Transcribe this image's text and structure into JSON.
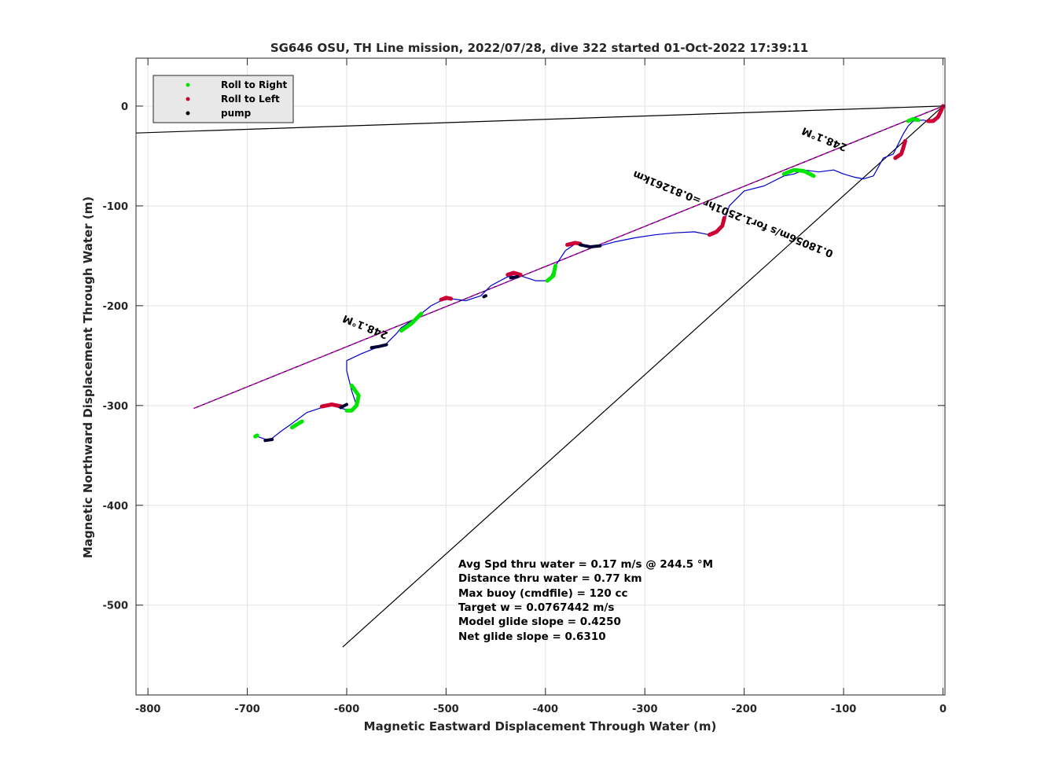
{
  "chart_data": {
    "type": "line",
    "title": "SG646 OSU, TH Line mission, 2022/07/28, dive 322 started 01-Oct-2022 17:39:11",
    "xlabel": "Magnetic Eastward Displacement Through Water (m)",
    "ylabel": "Magnetic Northward Displacement Through Water (m)",
    "xlim": [
      -812,
      2
    ],
    "ylim": [
      -590,
      48
    ],
    "xticks": [
      -800,
      -700,
      -600,
      -500,
      -400,
      -300,
      -200,
      -100,
      0
    ],
    "yticks": [
      -500,
      -400,
      -300,
      -200,
      -100,
      0
    ],
    "grid": true,
    "legend": {
      "placement": "top-left",
      "entries": [
        {
          "label": "Roll to Right",
          "color": "#00e600"
        },
        {
          "label": "Roll to Left",
          "color": "#cc0033"
        },
        {
          "label": "pump",
          "color": "#000000"
        }
      ]
    },
    "reference_lines": [
      {
        "name": "",
        "color": "#000000",
        "x": [
          0,
          -812
        ],
        "y": [
          0,
          -27
        ]
      },
      {
        "name": "",
        "color": "#000000",
        "x": [
          0,
          -754
        ],
        "y": [
          0,
          -303
        ]
      },
      {
        "name": "",
        "color": "#cc00cc",
        "x": [
          0,
          -754
        ],
        "y": [
          0,
          -303
        ]
      },
      {
        "name": "",
        "color": "#000000",
        "x": [
          0,
          -604
        ],
        "y": [
          0,
          -542
        ]
      }
    ],
    "series": [
      {
        "name": "",
        "color": "#0000cc",
        "x": [
          0,
          -5,
          -10,
          -20,
          -30,
          -35,
          -40,
          -45,
          -50,
          -60,
          -70,
          -80,
          -90,
          -100,
          -110,
          -125,
          -140,
          -150,
          -160,
          -180,
          -200,
          -215,
          -220,
          -225,
          -235,
          -250,
          -270,
          -290,
          -310,
          -330,
          -345,
          -355,
          -370,
          -380,
          -390,
          -395,
          -400,
          -410,
          -425,
          -430,
          -440,
          -455,
          -465,
          -480,
          -495,
          -505,
          -515,
          -530,
          -545,
          -550,
          -560,
          -570,
          -585,
          -600,
          -600,
          -595,
          -590,
          -595,
          -605,
          -615,
          -625,
          -640,
          -655,
          -665,
          -678,
          -690
        ],
        "y": [
          0,
          -10,
          -16,
          -14,
          -15,
          -20,
          -28,
          -38,
          -48,
          -52,
          -70,
          -73,
          -71,
          -68,
          -64,
          -66,
          -64,
          -68,
          -70,
          -80,
          -85,
          -100,
          -115,
          -125,
          -129,
          -126,
          -127,
          -129,
          -132,
          -136,
          -140,
          -141,
          -138,
          -145,
          -160,
          -172,
          -175,
          -175,
          -170,
          -168,
          -172,
          -180,
          -190,
          -195,
          -193,
          -195,
          -200,
          -212,
          -222,
          -228,
          -238,
          -242,
          -248,
          -255,
          -265,
          -285,
          -300,
          -305,
          -303,
          -300,
          -302,
          -307,
          -318,
          -325,
          -335,
          -331
        ]
      }
    ],
    "roll_right_segments": [
      {
        "x": [
          -35,
          -30,
          -25
        ],
        "y": [
          -15,
          -13,
          -14
        ]
      },
      {
        "x": [
          -160,
          -150,
          -140,
          -130
        ],
        "y": [
          -68,
          -64,
          -65,
          -70
        ]
      },
      {
        "x": [
          -390,
          -392,
          -398
        ],
        "y": [
          -160,
          -170,
          -175
        ]
      },
      {
        "x": [
          -525,
          -535,
          -545
        ],
        "y": [
          -208,
          -218,
          -225
        ]
      },
      {
        "x": [
          -595,
          -588,
          -590,
          -595,
          -600
        ],
        "y": [
          -280,
          -290,
          -300,
          -305,
          -305
        ]
      },
      {
        "x": [
          -645,
          -655
        ],
        "y": [
          -316,
          -322
        ]
      },
      {
        "x": [
          -690,
          -692
        ],
        "y": [
          -330,
          -331
        ]
      }
    ],
    "roll_left_segments": [
      {
        "x": [
          0,
          -2,
          -5,
          -10,
          -15
        ],
        "y": [
          0,
          -5,
          -11,
          -15,
          -15
        ]
      },
      {
        "x": [
          -38,
          -40,
          -42,
          -48
        ],
        "y": [
          -35,
          -42,
          -48,
          -52
        ]
      },
      {
        "x": [
          -220,
          -222,
          -228,
          -235
        ],
        "y": [
          -112,
          -120,
          -126,
          -129
        ]
      },
      {
        "x": [
          -365,
          -370,
          -378
        ],
        "y": [
          -138,
          -137,
          -139
        ]
      },
      {
        "x": [
          -425,
          -432,
          -438
        ],
        "y": [
          -169,
          -167,
          -169
        ]
      },
      {
        "x": [
          -495,
          -500,
          -505
        ],
        "y": [
          -193,
          -192,
          -194
        ]
      },
      {
        "x": [
          -605,
          -615,
          -625
        ],
        "y": [
          -301,
          -299,
          -301
        ]
      }
    ],
    "pump_segments": [
      {
        "x": [
          -345,
          -355,
          -365
        ],
        "y": [
          -140,
          -141,
          -139
        ]
      },
      {
        "x": [
          -428,
          -435
        ],
        "y": [
          -171,
          -172
        ]
      },
      {
        "x": [
          -460,
          -462
        ],
        "y": [
          -190,
          -191
        ]
      },
      {
        "x": [
          -560,
          -568,
          -575
        ],
        "y": [
          -239,
          -241,
          -242
        ]
      },
      {
        "x": [
          -600,
          -606
        ],
        "y": [
          -299,
          -302
        ]
      },
      {
        "x": [
          -675,
          -682
        ],
        "y": [
          -334,
          -335
        ]
      }
    ],
    "slope_labels": [
      {
        "text": "248.1°M",
        "x": -118,
        "y": -30,
        "angle": 202
      },
      {
        "text": "0.18056m/s for1.2501hr =0.81261km",
        "x": -210,
        "y": -105,
        "angle": 202
      },
      {
        "text": "248.1°M",
        "x": -580,
        "y": -218,
        "angle": 202
      }
    ],
    "annotations": [
      "Avg Spd thru water  =  0.17 m/s @ 244.5 °M",
      "Distance thru water =  0.77 km",
      "Max buoy (cmdfile)  = 120 cc",
      "Target w                    = 0.0767442 m/s",
      "Model glide slope    = 0.4250",
      "Net glide slope         = 0.6310"
    ]
  }
}
